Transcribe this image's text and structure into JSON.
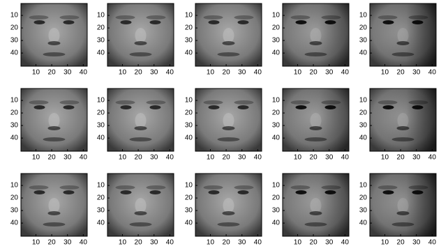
{
  "axes": {
    "xlim": [
      0.5,
      42.5
    ],
    "ylim": [
      0.5,
      50.5
    ],
    "xticks": [
      10,
      20,
      30,
      40
    ],
    "yticks": [
      10,
      20,
      30,
      40
    ]
  },
  "panels": 15
}
